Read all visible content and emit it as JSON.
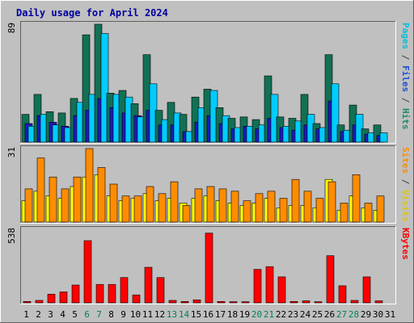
{
  "chart_data": {
    "type": "bar",
    "title": "Daily usage for April 2024",
    "days": [
      "1",
      "2",
      "3",
      "4",
      "5",
      "6",
      "7",
      "8",
      "9",
      "10",
      "11",
      "12",
      "13",
      "14",
      "15",
      "16",
      "17",
      "18",
      "19",
      "20",
      "21",
      "22",
      "23",
      "24",
      "25",
      "26",
      "27",
      "28",
      "29",
      "30",
      "31"
    ],
    "weekend_days": [
      6,
      7,
      13,
      14,
      20,
      21,
      27,
      28
    ],
    "panels": [
      {
        "id": "hits-panel",
        "max_label": "89",
        "ymax": 89,
        "legend": [
          {
            "text": "Pages",
            "color": "#00c0e0"
          },
          {
            "text": " / ",
            "color": "#404040"
          },
          {
            "text": "Files",
            "color": "#1b50d8"
          },
          {
            "text": " / ",
            "color": "#404040"
          },
          {
            "text": "Hits",
            "color": "#1f8a66"
          }
        ],
        "series": [
          {
            "name": "Hits",
            "color": "#127055",
            "values": [
              21,
              36,
              23,
              22,
              33,
              81,
              89,
              37,
              39,
              29,
              66,
              24,
              30,
              21,
              34,
              40,
              26,
              18,
              19,
              17,
              50,
              19,
              18,
              36,
              14,
              66,
              13,
              28,
              10,
              13,
              0
            ]
          },
          {
            "name": "Files",
            "color": "#1b1bc0",
            "values": [
              14,
              20,
              15,
              12,
              20,
              24,
              33,
              26,
              22,
              20,
              24,
              13,
              13,
              8,
              15,
              20,
              14,
              10,
              12,
              10,
              18,
              11,
              9,
              13,
              10,
              31,
              8,
              13,
              6,
              5,
              0
            ]
          },
          {
            "name": "Pages",
            "color": "#00ccff",
            "values": [
              12,
              21,
              13,
              11,
              30,
              36,
              82,
              36,
              34,
              19,
              44,
              17,
              22,
              8,
              26,
              39,
              20,
              11,
              12,
              13,
              36,
              12,
              16,
              21,
              11,
              44,
              9,
              21,
              7,
              7,
              0
            ]
          }
        ]
      },
      {
        "id": "visits-panel",
        "max_label": "31",
        "ymax": 31,
        "legend": [
          {
            "text": "Sites",
            "color": "#ff8c00"
          },
          {
            "text": " / ",
            "color": "#404040"
          },
          {
            "text": "Visits",
            "color": "#dcc800"
          }
        ],
        "series": [
          {
            "name": "Visits",
            "color": "#ffff00",
            "values": [
              9,
              13,
              11,
              10,
              15,
              19,
              20,
              11,
              9,
              10,
              12,
              9,
              10,
              8,
              10,
              11,
              9,
              8,
              7,
              8,
              10,
              6,
              7,
              7,
              6,
              18,
              5,
              11,
              6,
              5,
              0
            ]
          },
          {
            "name": "Sites",
            "color": "#ff8c00",
            "values": [
              14,
              27,
              19,
              14,
              19,
              31,
              23,
              16,
              11,
              11,
              15,
              12,
              17,
              7,
              14,
              15,
              14,
              13,
              9,
              12,
              13,
              10,
              18,
              13,
              10,
              17,
              8,
              20,
              8,
              11,
              0
            ]
          }
        ]
      },
      {
        "id": "kbytes-panel",
        "max_label": "538",
        "ymax": 538,
        "legend": [
          {
            "text": "KBytes",
            "color": "#ff0000"
          }
        ],
        "series": [
          {
            "name": "KBytes",
            "color": "#ff0000",
            "values": [
              10,
              18,
              63,
              80,
              130,
              455,
              135,
              135,
              185,
              58,
              260,
              185,
              18,
              10,
              22,
              510,
              10,
              8,
              8,
              245,
              265,
              190,
              10,
              15,
              8,
              345,
              125,
              18,
              190,
              15,
              0
            ]
          }
        ]
      }
    ]
  }
}
